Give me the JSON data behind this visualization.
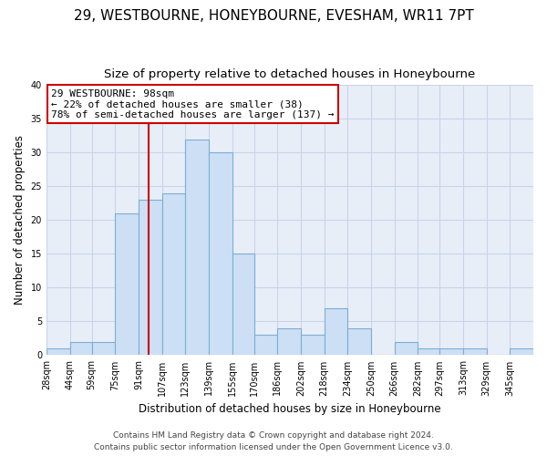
{
  "title": "29, WESTBOURNE, HONEYBOURNE, EVESHAM, WR11 7PT",
  "subtitle": "Size of property relative to detached houses in Honeybourne",
  "xlabel": "Distribution of detached houses by size in Honeybourne",
  "ylabel": "Number of detached properties",
  "bin_labels": [
    "28sqm",
    "44sqm",
    "59sqm",
    "75sqm",
    "91sqm",
    "107sqm",
    "123sqm",
    "139sqm",
    "155sqm",
    "170sqm",
    "186sqm",
    "202sqm",
    "218sqm",
    "234sqm",
    "250sqm",
    "266sqm",
    "282sqm",
    "297sqm",
    "313sqm",
    "329sqm",
    "345sqm"
  ],
  "bin_edges": [
    28,
    44,
    59,
    75,
    91,
    107,
    123,
    139,
    155,
    170,
    186,
    202,
    218,
    234,
    250,
    266,
    282,
    297,
    313,
    329,
    345
  ],
  "bar_heights": [
    1,
    2,
    2,
    21,
    23,
    24,
    32,
    30,
    15,
    3,
    4,
    3,
    7,
    4,
    0,
    2,
    1,
    1,
    1,
    0,
    1
  ],
  "bar_color": "#ccdff5",
  "bar_edge_color": "#7bafd4",
  "grid_color": "#c8d4e8",
  "bg_color": "#e8eef8",
  "property_size": 98,
  "vline_color": "#cc0000",
  "annotation_line1": "29 WESTBOURNE: 98sqm",
  "annotation_line2": "← 22% of detached houses are smaller (38)",
  "annotation_line3": "78% of semi-detached houses are larger (137) →",
  "annotation_box_color": "#cc0000",
  "ylim": [
    0,
    40
  ],
  "yticks": [
    0,
    5,
    10,
    15,
    20,
    25,
    30,
    35,
    40
  ],
  "footer_line1": "Contains HM Land Registry data © Crown copyright and database right 2024.",
  "footer_line2": "Contains public sector information licensed under the Open Government Licence v3.0.",
  "title_fontsize": 11,
  "subtitle_fontsize": 9.5,
  "axis_label_fontsize": 8.5,
  "tick_fontsize": 7,
  "annotation_fontsize": 8,
  "footer_fontsize": 6.5
}
